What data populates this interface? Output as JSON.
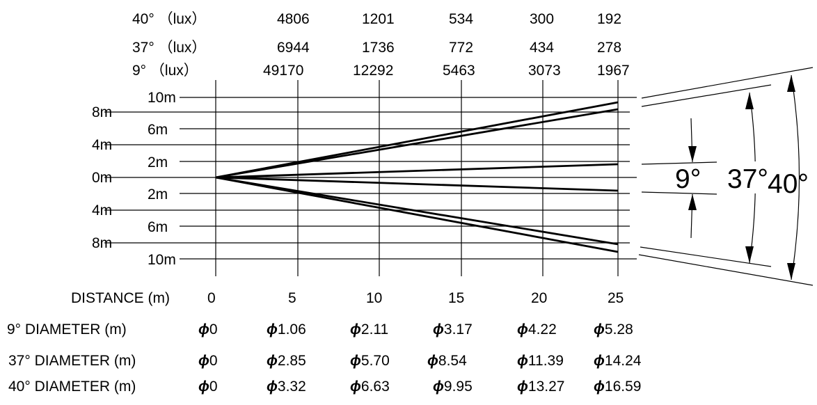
{
  "lux_rows": [
    {
      "label": "40°  （lux）",
      "values": [
        "4806",
        "1201",
        "534",
        "300",
        "192"
      ]
    },
    {
      "label": "37°  （lux）",
      "values": [
        "6944",
        "1736",
        "772",
        "434",
        "278"
      ]
    },
    {
      "label": "9°  （lux）",
      "values": [
        "49170",
        "12292",
        "5463",
        "3073",
        "1967"
      ]
    }
  ],
  "left_labels": [
    "8m",
    "4m",
    "0m",
    "4m",
    "8m"
  ],
  "inner_labels": [
    "10m",
    "6m",
    "2m",
    "2m",
    "6m",
    "10m"
  ],
  "distance_label": "DISTANCE (m)",
  "distance_ticks": [
    "0",
    "5",
    "10",
    "15",
    "20",
    "25"
  ],
  "diameter_rows": [
    {
      "label": "9°  DIAMETER (m)",
      "values": [
        "0",
        "1.06",
        "2.11",
        "3.17",
        "4.22",
        "5.28"
      ]
    },
    {
      "label": "37°  DIAMETER (m)",
      "values": [
        "0",
        "2.85",
        "5.70",
        "8.54",
        "11.39",
        "14.24"
      ]
    },
    {
      "label": "40°  DIAMETER (m)",
      "values": [
        "0",
        "3.32",
        "6.63",
        "9.95",
        "13.27",
        "16.59"
      ]
    }
  ],
  "diameter_symbol": "ϕ",
  "angles": [
    "9°",
    "37°",
    "40°"
  ],
  "beams": [
    {
      "angle_deg": 9,
      "diameter_m": 5.28
    },
    {
      "angle_deg": 37,
      "diameter_m": 14.24
    },
    {
      "angle_deg": 40,
      "diameter_m": 16.59
    }
  ]
}
